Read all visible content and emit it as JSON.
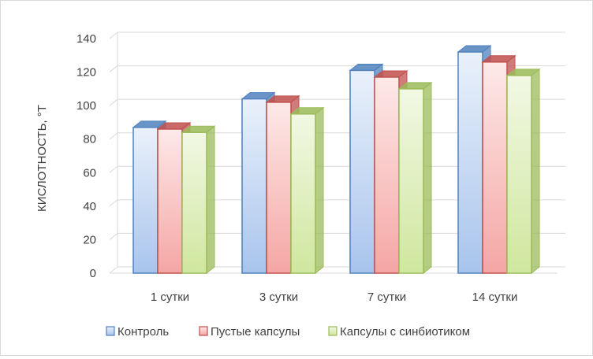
{
  "chart_data": {
    "type": "bar",
    "subtype": "3d-clustered-column",
    "title": "",
    "xlabel": "",
    "ylabel": "КИСЛОТНОСТЬ, °Т",
    "ylim": [
      0,
      140
    ],
    "yticks": [
      0,
      20,
      40,
      60,
      80,
      100,
      120,
      140
    ],
    "grid": true,
    "legend_position": "bottom",
    "categories": [
      "1 сутки",
      "3 сутки",
      "7 сутки",
      "14 сутки"
    ],
    "series": [
      {
        "name": "Контроль",
        "values": [
          87,
          104,
          121,
          132
        ],
        "color": "#4f81bd"
      },
      {
        "name": "Пустые капсулы",
        "values": [
          86,
          102,
          117,
          126
        ],
        "color": "#c0504d"
      },
      {
        "name": "Капсулы с синбиотиком",
        "values": [
          84,
          95,
          110,
          118
        ],
        "color": "#9bbb59"
      }
    ]
  }
}
